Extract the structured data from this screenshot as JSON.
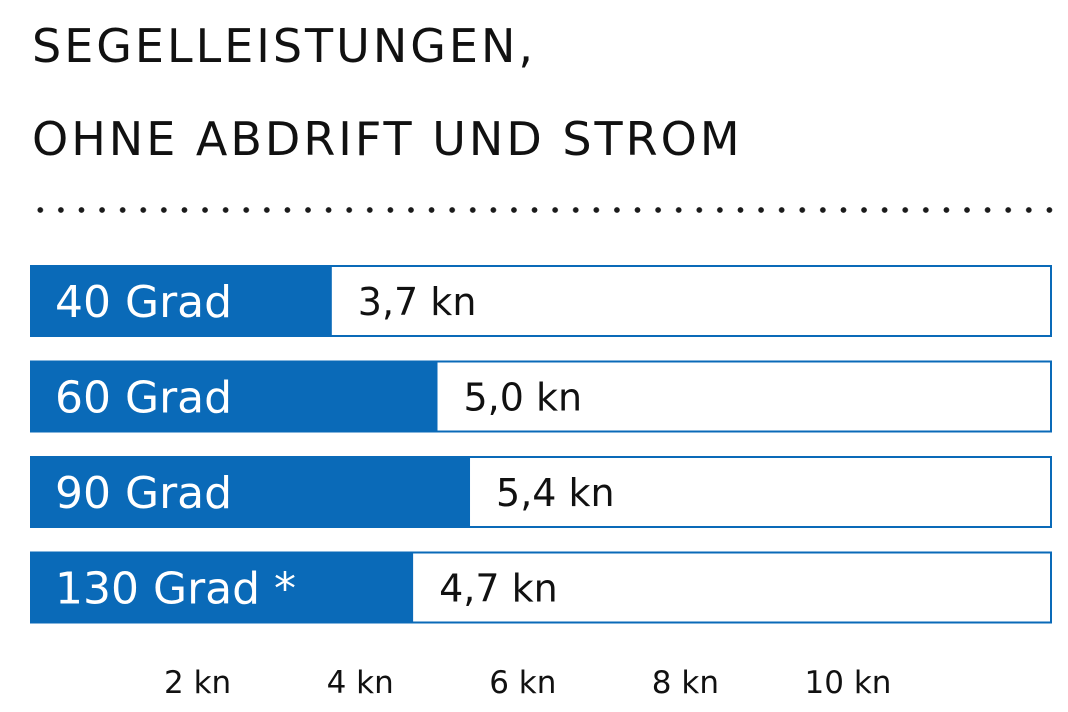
{
  "title_lines": [
    "SEGELLEISTUNGEN,",
    "OHNE ABDRIFT UND STROM"
  ],
  "colors": {
    "bar_fill": "#0a6ab8",
    "bar_border": "#0a6ab8",
    "track_fill": "#ffffff",
    "text_dark": "#111111",
    "text_light": "#ffffff"
  },
  "chart_data": {
    "type": "bar",
    "orientation": "horizontal",
    "title": "SEGELLEISTUNGEN, OHNE ABDRIFT UND STROM",
    "categories": [
      "40 Grad",
      "60 Grad",
      "90 Grad",
      "130 Grad *"
    ],
    "values": [
      3.7,
      5.0,
      5.4,
      4.7
    ],
    "value_labels": [
      "3,7 kn",
      "5,0 kn",
      "5,4 kn",
      "4,7 kn"
    ],
    "unit": "kn",
    "xlim": [
      0,
      12
    ],
    "x_ticks": [
      2,
      4,
      6,
      8,
      10
    ],
    "x_tick_labels": [
      "2 kn",
      "4 kn",
      "6 kn",
      "8 kn",
      "10 kn"
    ],
    "xlabel": "",
    "ylabel": "",
    "grid": false,
    "legend": "none"
  }
}
